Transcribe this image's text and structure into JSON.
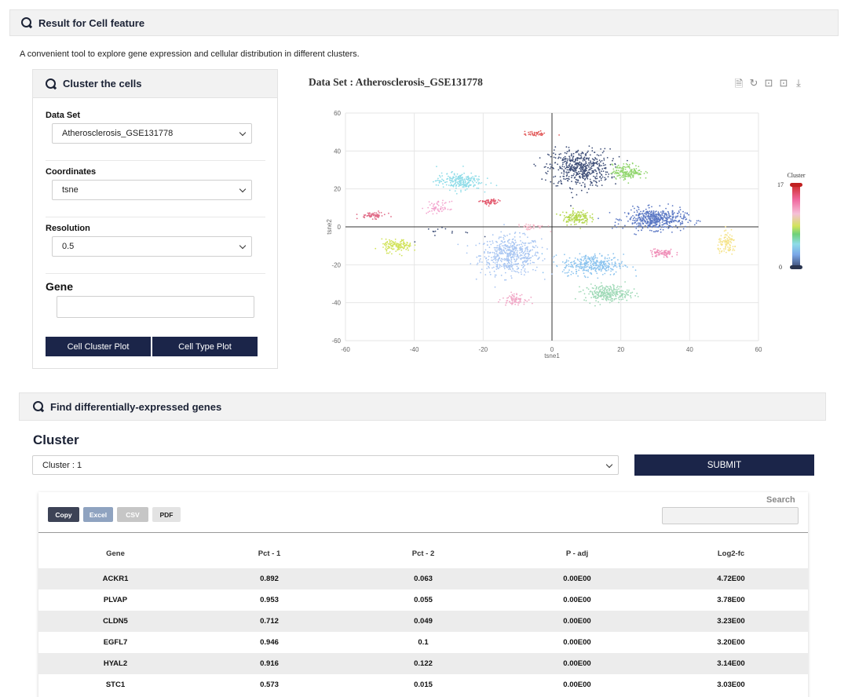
{
  "header": {
    "title": "Result for Cell feature"
  },
  "description": "A convenient tool to explore gene expression and cellular distribution in different clusters.",
  "cluster_panel": {
    "title": "Cluster the cells",
    "dataset_label": "Data Set",
    "dataset_value": "Atherosclerosis_GSE131778",
    "coordinates_label": "Coordinates",
    "coordinates_value": "tsne",
    "resolution_label": "Resolution",
    "resolution_value": "0.5",
    "gene_label": "Gene",
    "gene_value": "",
    "btn_cluster": "Cell Cluster Plot",
    "btn_type": "Cell Type Plot"
  },
  "plot": {
    "title": "Data Set : Atherosclerosis_GSE131778",
    "toolbox_icons": [
      "data-view-icon",
      "restore-icon",
      "zoom-icon",
      "zoom-reset-icon",
      "download-icon"
    ],
    "toolbox_glyphs": [
      "🗎",
      "↻",
      "⊡",
      "⊡",
      "⤓"
    ]
  },
  "chart_data": {
    "type": "scatter",
    "xlabel": "tsne1",
    "ylabel": "tsne2",
    "xlim": [
      -60,
      60
    ],
    "ylim": [
      -60,
      60
    ],
    "xticks": [
      -60,
      -40,
      -20,
      0,
      20,
      40,
      60
    ],
    "yticks": [
      60,
      40,
      20,
      0,
      -20,
      -40,
      -60
    ],
    "grid": true,
    "visualmap": {
      "title": "Cluster",
      "min": 0,
      "max": 17,
      "min_label": "0",
      "max_label": "17"
    },
    "clusters": [
      {
        "cluster": 0,
        "x": -12,
        "y": -15,
        "sx": 8,
        "sy": 9,
        "n": 520,
        "color": "#a9c6f2"
      },
      {
        "cluster": 1,
        "x": 8,
        "y": 31,
        "sx": 8,
        "sy": 9,
        "n": 520,
        "color": "#3f4f78"
      },
      {
        "cluster": 2,
        "x": 30,
        "y": 4,
        "sx": 8,
        "sy": 5,
        "n": 480,
        "color": "#5b78c4"
      },
      {
        "cluster": 3,
        "x": 12,
        "y": -20,
        "sx": 8,
        "sy": 5,
        "n": 330,
        "color": "#8cc4ef"
      },
      {
        "cluster": 4,
        "x": 16,
        "y": -35,
        "sx": 6,
        "sy": 4,
        "n": 260,
        "color": "#9ed9b6"
      },
      {
        "cluster": 5,
        "x": -27,
        "y": 24,
        "sx": 6,
        "sy": 4,
        "n": 220,
        "color": "#8fdce8"
      },
      {
        "cluster": 6,
        "x": 22,
        "y": 29,
        "sx": 4,
        "sy": 3.5,
        "n": 170,
        "color": "#92d66e"
      },
      {
        "cluster": 7,
        "x": 7,
        "y": 5,
        "sx": 3.5,
        "sy": 3.5,
        "n": 150,
        "color": "#b5d84f"
      },
      {
        "cluster": 8,
        "x": -45,
        "y": -10,
        "sx": 4,
        "sy": 3,
        "n": 140,
        "color": "#d2e35c"
      },
      {
        "cluster": 9,
        "x": 51,
        "y": -9,
        "sx": 2.5,
        "sy": 5,
        "n": 100,
        "color": "#f5e38a"
      },
      {
        "cluster": 10,
        "x": 32,
        "y": -14,
        "sx": 3.5,
        "sy": 2,
        "n": 80,
        "color": "#f090b9"
      },
      {
        "cluster": 11,
        "x": -11,
        "y": -38,
        "sx": 3,
        "sy": 2.5,
        "n": 80,
        "color": "#f1a8c7"
      },
      {
        "cluster": 12,
        "x": -33,
        "y": 10,
        "sx": 3,
        "sy": 3,
        "n": 60,
        "color": "#f3a6cf"
      },
      {
        "cluster": 13,
        "x": -52,
        "y": 6,
        "sx": 3.5,
        "sy": 1.5,
        "n": 60,
        "color": "#e06a86"
      },
      {
        "cluster": 14,
        "x": -18,
        "y": 13,
        "sx": 2.5,
        "sy": 1.5,
        "n": 50,
        "color": "#e2556a"
      },
      {
        "cluster": 15,
        "x": -6,
        "y": 0,
        "sx": 4,
        "sy": 1.5,
        "n": 40,
        "color": "#f5b8c8"
      },
      {
        "cluster": 16,
        "x": -5,
        "y": 49,
        "sx": 3,
        "sy": 1.2,
        "n": 40,
        "color": "#e25d5d"
      },
      {
        "cluster": 17,
        "x": -30,
        "y": -2,
        "sx": 8,
        "sy": 4,
        "n": 14,
        "color": "#3f4f78"
      }
    ]
  },
  "deg": {
    "title": "Find differentially-expressed genes",
    "cluster_heading": "Cluster",
    "cluster_value": "Cluster : 1",
    "submit_label": "SUBMIT",
    "export_buttons": [
      {
        "label": "Copy",
        "bg": "#3d4356",
        "fg": "#ffffff"
      },
      {
        "label": "Excel",
        "bg": "#8fa3c0",
        "fg": "#ffffff"
      },
      {
        "label": "CSV",
        "bg": "#c6c6c6",
        "fg": "#ffffff"
      },
      {
        "label": "PDF",
        "bg": "#e3e3e3",
        "fg": "#222222"
      }
    ],
    "search_label": "Search",
    "search_value": "",
    "columns": [
      "Gene",
      "Pct - 1",
      "Pct - 2",
      "P - adj",
      "Log2-fc"
    ],
    "rows": [
      [
        "ACKR1",
        "0.892",
        "0.063",
        "0.00E00",
        "4.72E00"
      ],
      [
        "PLVAP",
        "0.953",
        "0.055",
        "0.00E00",
        "3.78E00"
      ],
      [
        "CLDN5",
        "0.712",
        "0.049",
        "0.00E00",
        "3.23E00"
      ],
      [
        "EGFL7",
        "0.946",
        "0.1",
        "0.00E00",
        "3.20E00"
      ],
      [
        "HYAL2",
        "0.916",
        "0.122",
        "0.00E00",
        "3.14E00"
      ],
      [
        "STC1",
        "0.573",
        "0.015",
        "0.00E00",
        "3.03E00"
      ]
    ]
  }
}
